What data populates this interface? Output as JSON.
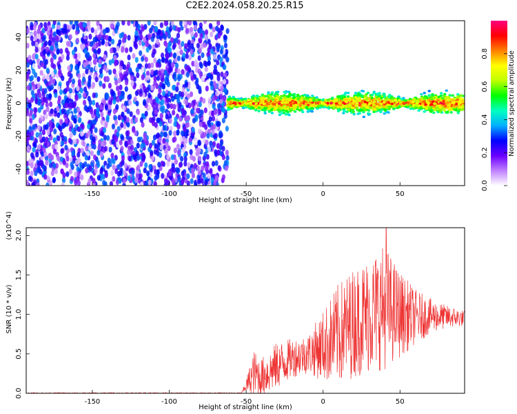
{
  "figure_title": "C2E2.2024.058.20.25.R15",
  "chart_data": [
    {
      "type": "heatmap",
      "title": "C2E2.2024.058.20.25.R15",
      "xlabel": "Height of straight line (km)",
      "ylabel": "Frequency (Hz)",
      "xlim": [
        -193,
        92
      ],
      "ylim": [
        -50,
        50
      ],
      "x_ticks": [
        -150,
        -100,
        -50,
        0,
        50
      ],
      "y_ticks": [
        -40,
        -20,
        0,
        20,
        40
      ],
      "colorbar": {
        "label": "Normalized spectral amplitude",
        "range": [
          0,
          1
        ],
        "ticks": [
          "0.0",
          "0.2",
          "0.4",
          "0.6",
          "0.8"
        ],
        "colors": [
          "#ffffff",
          "#c080ff",
          "#6a00ff",
          "#0000ff",
          "#00b0ff",
          "#00ffc0",
          "#00ff00",
          "#c0ff00",
          "#ffff00",
          "#ff8000",
          "#ff0000",
          "#ff0080"
        ]
      },
      "regions": [
        {
          "x": [
            -193,
            -62
          ],
          "freq": [
            -50,
            50
          ],
          "amplitude": [
            0.0,
            0.35
          ],
          "pattern": "noise"
        },
        {
          "x": [
            -62,
            92
          ],
          "freq_center": 0,
          "freq_halfwidth": [
            3,
            9
          ],
          "amplitude": [
            0.3,
            1.0
          ],
          "pattern": "band"
        }
      ],
      "grid": false
    },
    {
      "type": "line",
      "xlabel": "Height of straight line (km)",
      "ylabel": "SNR (10 * v/v)",
      "y_multiplier": "(x10^4)",
      "xlim": [
        -193,
        92
      ],
      "ylim": [
        0,
        2.1
      ],
      "x_ticks": [
        -150,
        -100,
        -50,
        0,
        50
      ],
      "y_ticks": [
        "0.0",
        "0.5",
        "1.0",
        "1.5",
        "2.0"
      ],
      "series_color": "#ee3333",
      "envelope": [
        {
          "x": -193,
          "mean": 0.0,
          "amp": 0.01
        },
        {
          "x": -53,
          "mean": 0.0,
          "amp": 0.01
        },
        {
          "x": -50,
          "mean": 0.1,
          "amp": 0.08
        },
        {
          "x": -45,
          "mean": 0.25,
          "amp": 0.3
        },
        {
          "x": -40,
          "mean": 0.2,
          "amp": 0.25
        },
        {
          "x": -30,
          "mean": 0.35,
          "amp": 0.3
        },
        {
          "x": -20,
          "mean": 0.45,
          "amp": 0.25
        },
        {
          "x": -10,
          "mean": 0.5,
          "amp": 0.25
        },
        {
          "x": 0,
          "mean": 0.6,
          "amp": 0.45
        },
        {
          "x": 10,
          "mean": 0.75,
          "amp": 0.65
        },
        {
          "x": 20,
          "mean": 0.9,
          "amp": 0.7
        },
        {
          "x": 30,
          "mean": 1.0,
          "amp": 0.75
        },
        {
          "x": 40,
          "mean": 1.1,
          "amp": 0.8
        },
        {
          "x": 50,
          "mean": 1.0,
          "amp": 0.55
        },
        {
          "x": 60,
          "mean": 0.97,
          "amp": 0.35
        },
        {
          "x": 70,
          "mean": 0.98,
          "amp": 0.22
        },
        {
          "x": 80,
          "mean": 0.97,
          "amp": 0.15
        },
        {
          "x": 92,
          "mean": 0.95,
          "amp": 0.1
        }
      ],
      "peak": {
        "x": 41,
        "y": 2.1
      },
      "grid": false
    }
  ]
}
